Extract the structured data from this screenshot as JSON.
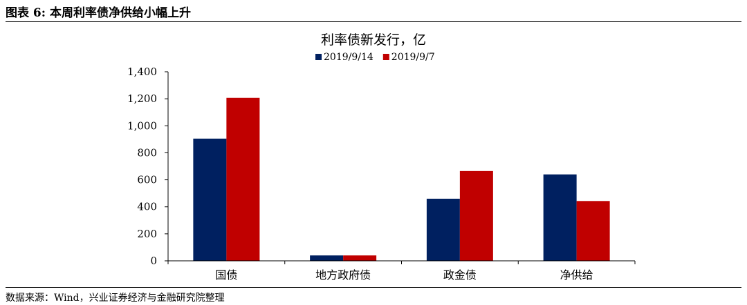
{
  "figure": {
    "title": "图表 6:  本周利率债净供给小幅上升",
    "source": "数据来源：Wind，兴业证券经济与金融研究院整理"
  },
  "chart_data": {
    "type": "bar",
    "title": "利率债新发行，亿",
    "categories": [
      "国债",
      "地方政府债",
      "政金债",
      "净供给"
    ],
    "series": [
      {
        "name": "2019/9/14",
        "color": "#002060",
        "values": [
          905,
          40,
          460,
          640
        ]
      },
      {
        "name": "2019/9/7",
        "color": "#C00000",
        "values": [
          1207,
          40,
          665,
          443
        ]
      }
    ],
    "y_ticks": [
      "0",
      "200",
      "400",
      "600",
      "800",
      "1,000",
      "1,200",
      "1,400"
    ],
    "ylim": [
      0,
      1400
    ],
    "legend_position": "top",
    "grid": false
  }
}
